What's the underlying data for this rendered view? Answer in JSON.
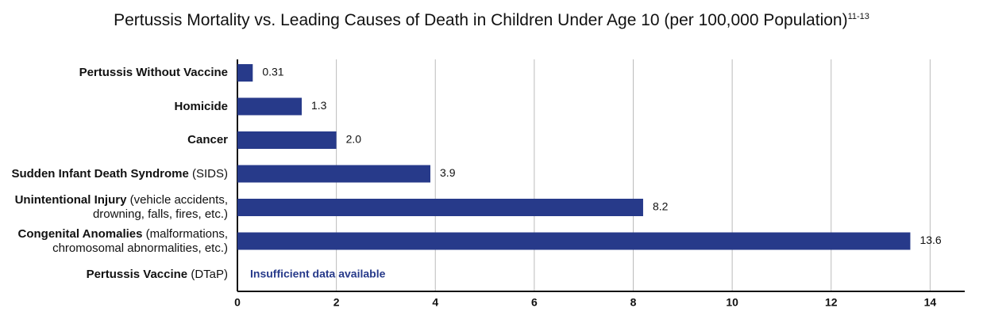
{
  "chart_data": {
    "type": "hbar",
    "title": "Pertussis Mortality vs. Leading Causes of Death in Children Under Age 10 (per 100,000 Population)",
    "title_superscript": "11-13",
    "categories": [
      {
        "name": "Pertussis Without Vaccine"
      },
      {
        "name": "Homicide"
      },
      {
        "name": "Cancer"
      },
      {
        "name": "Sudden Infant Death Syndrome",
        "detail": "(SIDS)"
      },
      {
        "name": "Unintentional Injury",
        "detail": "(vehicle accidents, drowning, falls, fires, etc.)"
      },
      {
        "name": "Congenital Anomalies",
        "detail": "(malforma­tions, chromosomal abnormalities, etc.)"
      },
      {
        "name": "Pertussis Vaccine",
        "detail": "(DTaP)"
      }
    ],
    "values": [
      0.31,
      1.3,
      2.0,
      3.9,
      8.2,
      13.6,
      null
    ],
    "value_labels": [
      "0.31",
      "1.3",
      "2.0",
      "3.9",
      "8.2",
      "13.6",
      null
    ],
    "annotations": [
      {
        "category": 6,
        "text": "Insufficient data available"
      }
    ],
    "color": "#273a8a",
    "xlim": [
      0,
      14.7
    ],
    "xticks": [
      0,
      2,
      4,
      6,
      8,
      10,
      12,
      14
    ],
    "grid": true
  }
}
